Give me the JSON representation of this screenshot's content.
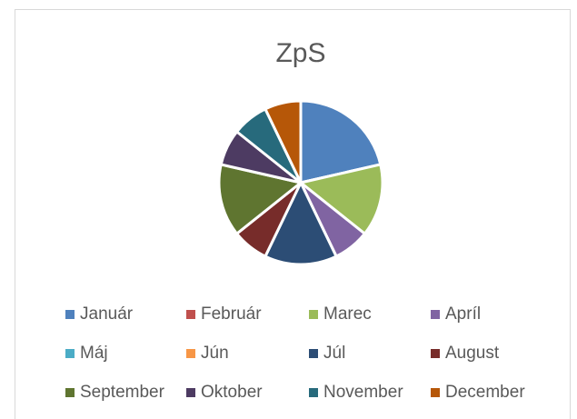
{
  "chart_data": {
    "type": "pie",
    "title": "ZpS",
    "categories": [
      "Január",
      "Február",
      "Marec",
      "Apríl",
      "Máj",
      "Jún",
      "Júl",
      "August",
      "September",
      "Oktober",
      "November",
      "December"
    ],
    "values": [
      3,
      0,
      2,
      1,
      0,
      0,
      2,
      1,
      2,
      1,
      1,
      1
    ],
    "colors": [
      "#4f81bd",
      "#c0504d",
      "#9bbb59",
      "#8064a2",
      "#4bacc6",
      "#f79646",
      "#2c4d75",
      "#772c2a",
      "#5f7530",
      "#4d3b62",
      "#276a7c",
      "#b65708"
    ],
    "legend": "bottom"
  }
}
